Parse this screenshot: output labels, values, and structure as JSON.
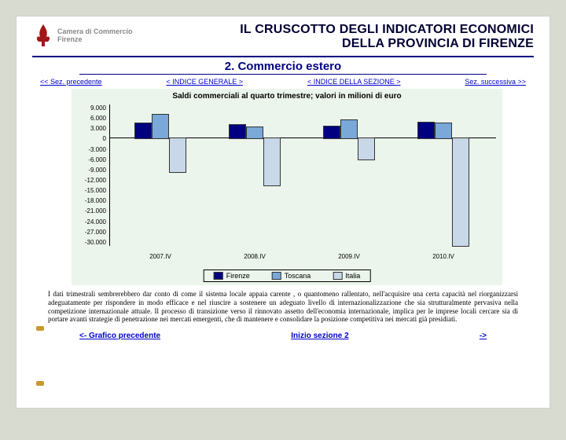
{
  "header": {
    "org_line1": "Camera di Commercio",
    "org_line2": "Firenze",
    "title_line1": "IL CRUSCOTTO DEGLI INDICATORI ECONOMICI",
    "title_line2": "DELLA PROVINCIA DI FIRENZE"
  },
  "subtitle": "2. Commercio estero",
  "nav": {
    "prev": "<< Sez. precedente",
    "idx_gen": "< INDICE GENERALE >",
    "idx_sez": "< INDICE DELLA SEZIONE >",
    "next": "Sez. successiva >>"
  },
  "chart": {
    "title": "Saldi commerciali al quarto trimestre; valori in milioni di euro",
    "background_color": "#ecf5ec",
    "y_ticks": [
      "9.000",
      "6.000",
      "3.000",
      "0",
      "-3.000",
      "-6.000",
      "-9.000",
      "-12.000",
      "-15.000",
      "-18.000",
      "-21.000",
      "-24.000",
      "-27.000",
      "-30.000"
    ],
    "y_max": 9000,
    "y_min": -30000,
    "categories": [
      "2007.IV",
      "2008.IV",
      "2009.IV",
      "2010.IV"
    ],
    "series": [
      {
        "name": "Firenze",
        "color": "#000080"
      },
      {
        "name": "Toscana",
        "color": "#7aa8d8"
      },
      {
        "name": "Italia",
        "color": "#c8d8e8"
      }
    ],
    "values": {
      "2007.IV": {
        "Firenze": 4000,
        "Toscana": 6500,
        "Italia": -9500
      },
      "2008.IV": {
        "Firenze": 3500,
        "Toscana": 3000,
        "Italia": -13000
      },
      "2009.IV": {
        "Firenze": 3200,
        "Toscana": 4800,
        "Italia": -5900
      },
      "2010.IV": {
        "Firenze": 4200,
        "Toscana": 4000,
        "Italia": -29800
      }
    }
  },
  "paragraph": "I dati trimestrali sembrerebbero dar conto di come il sistema locale appaia carente , o quantomeno rallentato, nell'acquisire una certa capacità nel riorganizzarsi adeguatamente per rispondere in modo efficace e nel riuscire a sostenere un adeguato livello di internazionalizzazione che sia strutturalmente pervasiva nella competizione internazionale attuale. Il processo di transizione verso il rinnovato assetto dell'economia internazionale, implica per le imprese locali cercare sia di portare avanti strategie di penetrazione nei mercati emergenti, che di mantenere e consolidare la posizione competitiva nei mercati già presidiati.",
  "bottom": {
    "prev": "<- Grafico precedente",
    "start": "Inizio sezione 2",
    "next": "->"
  },
  "colors": {
    "link": "#0000cc",
    "underline": "#000080"
  }
}
